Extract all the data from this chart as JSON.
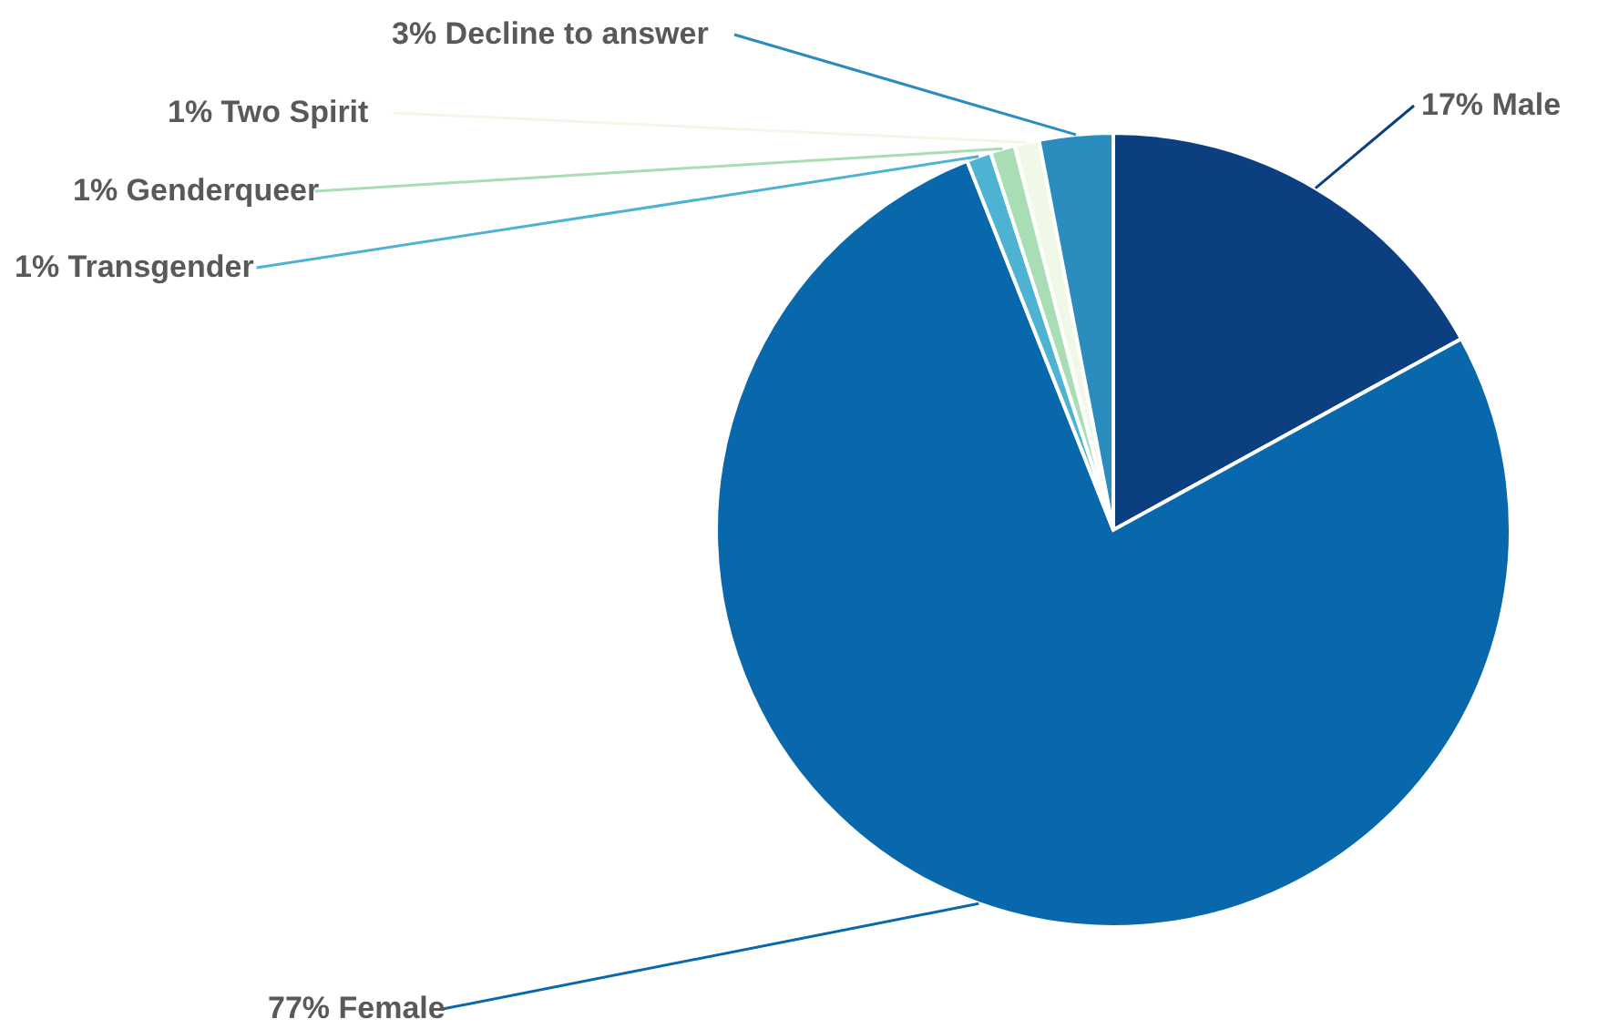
{
  "chart_data": {
    "type": "pie",
    "categories": [
      "Male",
      "Female",
      "Transgender",
      "Genderqueer",
      "Two Spirit",
      "Decline to answer"
    ],
    "values": [
      17,
      77,
      1,
      1,
      1,
      3
    ],
    "value_labels": [
      "17%",
      "77%",
      "1%",
      "1%",
      "1%",
      "3%"
    ],
    "colors": [
      "#0b3f80",
      "#0868ab",
      "#4eb3d3",
      "#a8ddb5",
      "#f0f9e8",
      "#2b8cbe"
    ]
  }
}
